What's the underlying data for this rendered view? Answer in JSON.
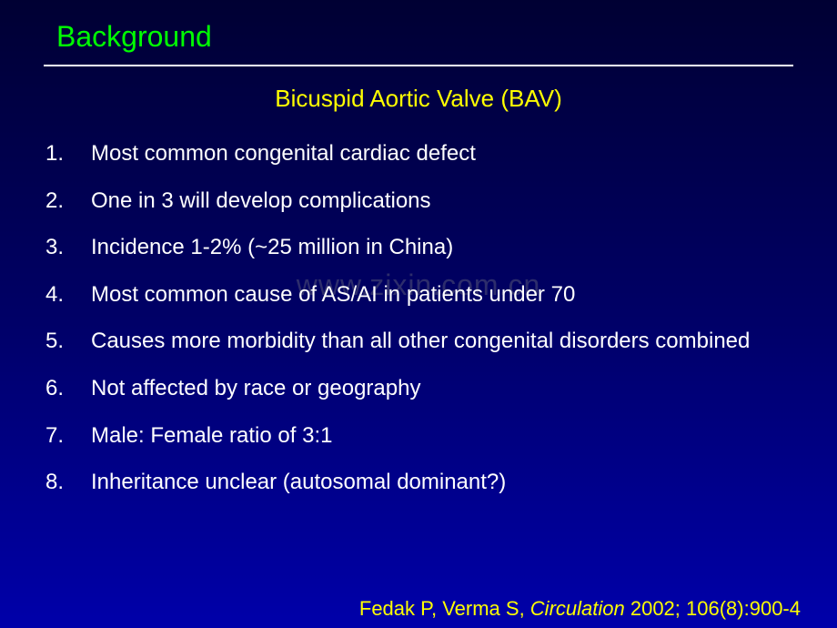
{
  "title": "Background",
  "subtitle": {
    "text": "Bicuspid Aortic Valve (BAV)",
    "color": "#ffff00",
    "fontsize": 26
  },
  "list": {
    "items": [
      "Most common congenital cardiac defect",
      "One in 3 will develop complications",
      "Incidence 1-2% (~25 million in China)",
      "Most common cause of AS/AI in patients under 70",
      "Causes more morbidity than all other congenital disorders combined",
      "Not affected by race or geography",
      "Male: Female ratio of 3:1",
      "Inheritance unclear (autosomal dominant?)"
    ],
    "text_color": "#ffffff",
    "fontsize": 24
  },
  "citation": {
    "authors": "Fedak P, Verma S, ",
    "journal": "Circulation",
    "rest": " 2002; 106(8):900-4",
    "color": "#ffff00",
    "fontsize": 22
  },
  "watermark": "www.zixin.com.cn",
  "styling": {
    "title_color": "#00ff00",
    "title_fontsize": 32,
    "background_gradient": [
      "#000033",
      "#000066",
      "#0000aa"
    ],
    "divider_color": "#ffffff"
  }
}
